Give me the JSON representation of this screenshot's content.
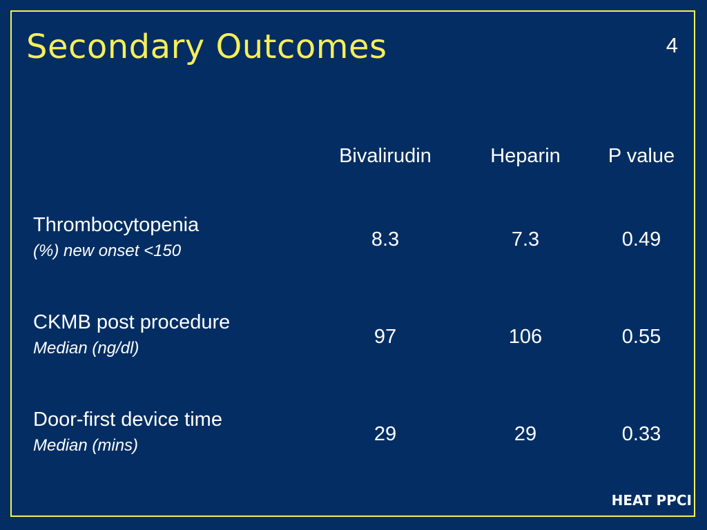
{
  "slide": {
    "title": "Secondary Outcomes",
    "page_number": "4",
    "footer": "HEAT PPCI"
  },
  "table": {
    "columns": [
      "Bivalirudin",
      "Heparin",
      "P value"
    ],
    "rows": [
      {
        "label": "Thrombocytopenia",
        "sublabel": "(%) new onset <150",
        "values": [
          "8.3",
          "7.3",
          "0.49"
        ]
      },
      {
        "label": "CKMB post procedure",
        "sublabel": "Median (ng/dl)",
        "values": [
          "97",
          "106",
          "0.55"
        ]
      },
      {
        "label": "Door-first device time",
        "sublabel": "Median (mins)",
        "values": [
          "29",
          "29",
          "0.33"
        ]
      }
    ]
  },
  "colors": {
    "background": "#042e63",
    "accent": "#f5ef5a",
    "text": "#ffffff"
  }
}
